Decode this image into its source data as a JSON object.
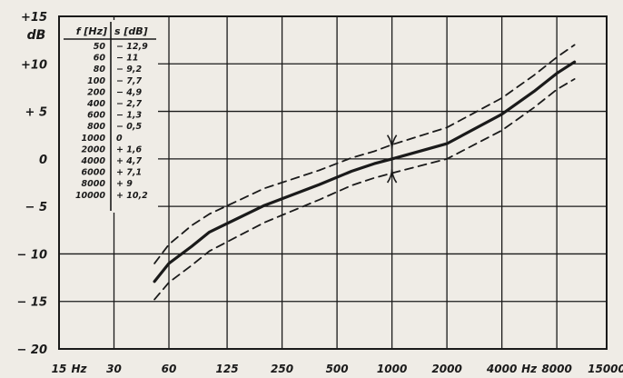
{
  "chart_data": {
    "type": "line",
    "ylabel": "dB",
    "xlabel": "Hz",
    "x_scale": "log",
    "xlim": [
      15,
      15000
    ],
    "ylim": [
      -20,
      15
    ],
    "grid": true,
    "x_ticks": [
      {
        "value": 15,
        "label": "15"
      },
      {
        "value": 30,
        "label": "30"
      },
      {
        "value": 60,
        "label": "60"
      },
      {
        "value": 125,
        "label": "125"
      },
      {
        "value": 250,
        "label": "250"
      },
      {
        "value": 500,
        "label": "500"
      },
      {
        "value": 1000,
        "label": "1000"
      },
      {
        "value": 2000,
        "label": "2000"
      },
      {
        "value": 4000,
        "label": "4000"
      },
      {
        "value": 8000,
        "label": "8000"
      },
      {
        "value": 15000,
        "label": "15000"
      }
    ],
    "x_unit_labels": [
      {
        "after": 15,
        "text": "Hz"
      },
      {
        "after": 4000,
        "text": "Hz"
      }
    ],
    "y_ticks": [
      {
        "value": 15,
        "label": "+15"
      },
      {
        "value": 10,
        "label": "+10"
      },
      {
        "value": 5,
        "label": "+ 5"
      },
      {
        "value": 0,
        "label": "0"
      },
      {
        "value": -5,
        "label": "− 5"
      },
      {
        "value": -10,
        "label": "− 10"
      },
      {
        "value": -15,
        "label": "− 15"
      },
      {
        "value": -20,
        "label": "− 20"
      }
    ],
    "table": {
      "headers": [
        "f [Hz]",
        "s [dB]"
      ],
      "rows": [
        [
          "50",
          "− 12,9"
        ],
        [
          "60",
          "− 11"
        ],
        [
          "80",
          "− 9,2"
        ],
        [
          "100",
          "− 7,7"
        ],
        [
          "200",
          "− 4,9"
        ],
        [
          "400",
          "− 2,7"
        ],
        [
          "600",
          "− 1,3"
        ],
        [
          "800",
          "− 0,5"
        ],
        [
          "1000",
          "0"
        ],
        [
          "2000",
          "+ 1,6"
        ],
        [
          "4000",
          "+ 4,7"
        ],
        [
          "6000",
          "+ 7,1"
        ],
        [
          "8000",
          "+ 9"
        ],
        [
          "10000",
          "+ 10,2"
        ]
      ]
    },
    "series": [
      {
        "style": "solid",
        "points": [
          [
            50,
            -12.9
          ],
          [
            60,
            -11
          ],
          [
            80,
            -9.2
          ],
          [
            100,
            -7.7
          ],
          [
            200,
            -4.9
          ],
          [
            400,
            -2.7
          ],
          [
            600,
            -1.3
          ],
          [
            800,
            -0.5
          ],
          [
            1000,
            0
          ],
          [
            2000,
            1.6
          ],
          [
            4000,
            4.7
          ],
          [
            6000,
            7.1
          ],
          [
            8000,
            9
          ],
          [
            10000,
            10.2
          ]
        ]
      },
      {
        "style": "dashed",
        "points": [
          [
            50,
            -11
          ],
          [
            60,
            -9
          ],
          [
            80,
            -7
          ],
          [
            100,
            -5.8
          ],
          [
            200,
            -3.1
          ],
          [
            400,
            -1.2
          ],
          [
            600,
            0.1
          ],
          [
            800,
            0.8
          ],
          [
            1000,
            1.5
          ],
          [
            2000,
            3.3
          ],
          [
            4000,
            6.4
          ],
          [
            6000,
            8.8
          ],
          [
            8000,
            10.7
          ],
          [
            10000,
            12
          ]
        ]
      },
      {
        "style": "dashed",
        "points": [
          [
            50,
            -14.8
          ],
          [
            60,
            -13
          ],
          [
            80,
            -11.2
          ],
          [
            100,
            -9.7
          ],
          [
            200,
            -6.7
          ],
          [
            400,
            -4.3
          ],
          [
            600,
            -2.8
          ],
          [
            800,
            -2
          ],
          [
            1000,
            -1.5
          ],
          [
            2000,
            0
          ],
          [
            4000,
            3
          ],
          [
            6000,
            5.4
          ],
          [
            8000,
            7.3
          ],
          [
            10000,
            8.4
          ]
        ]
      }
    ],
    "tolerance_marker": {
      "x": 1000,
      "upper": 1.5,
      "lower": -1.5
    },
    "colors": {
      "background": "#efece6",
      "ink": "#1a1a1a"
    }
  }
}
